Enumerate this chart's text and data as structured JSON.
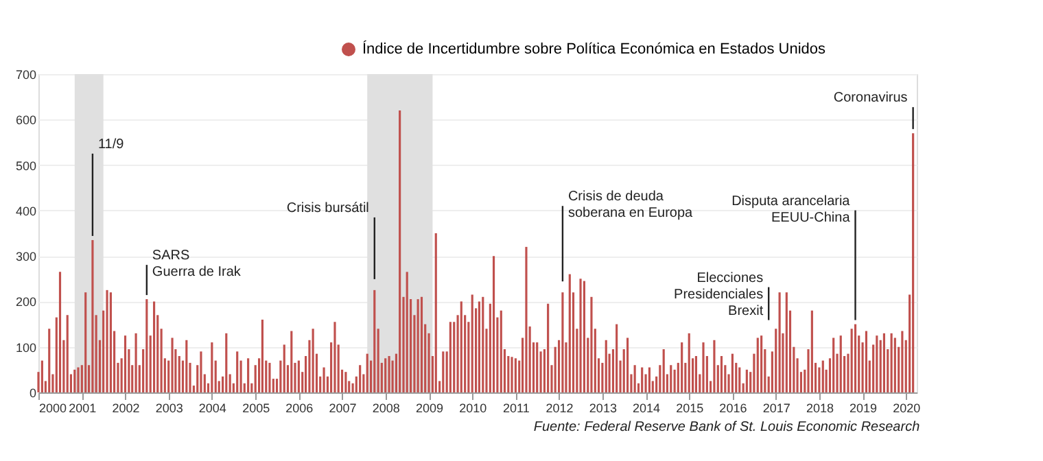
{
  "chart_data": {
    "type": "bar",
    "x": [
      "2000-01",
      "2000-02",
      "2000-03",
      "2000-04",
      "2000-05",
      "2000-06",
      "2000-07",
      "2000-08",
      "2000-09",
      "2000-10",
      "2000-11",
      "2000-12",
      "2001-01",
      "2001-02",
      "2001-03",
      "2001-04",
      "2001-05",
      "2001-06",
      "2001-07",
      "2001-08",
      "2001-09",
      "2001-10",
      "2001-11",
      "2001-12",
      "2002-01",
      "2002-02",
      "2002-03",
      "2002-04",
      "2002-05",
      "2002-06",
      "2002-07",
      "2002-08",
      "2002-09",
      "2002-10",
      "2002-11",
      "2002-12",
      "2003-01",
      "2003-02",
      "2003-03",
      "2003-04",
      "2003-05",
      "2003-06",
      "2003-07",
      "2003-08",
      "2003-09",
      "2003-10",
      "2003-11",
      "2003-12",
      "2004-01",
      "2004-02",
      "2004-03",
      "2004-04",
      "2004-05",
      "2004-06",
      "2004-07",
      "2004-08",
      "2004-09",
      "2004-10",
      "2004-11",
      "2004-12",
      "2005-01",
      "2005-02",
      "2005-03",
      "2005-04",
      "2005-05",
      "2005-06",
      "2005-07",
      "2005-08",
      "2005-09",
      "2005-10",
      "2005-11",
      "2005-12",
      "2006-01",
      "2006-02",
      "2006-03",
      "2006-04",
      "2006-05",
      "2006-06",
      "2006-07",
      "2006-08",
      "2006-09",
      "2006-10",
      "2006-11",
      "2006-12",
      "2007-01",
      "2007-02",
      "2007-03",
      "2007-04",
      "2007-05",
      "2007-06",
      "2007-07",
      "2007-08",
      "2007-09",
      "2007-10",
      "2007-11",
      "2007-12",
      "2008-01",
      "2008-02",
      "2008-03",
      "2008-04",
      "2008-05",
      "2008-06",
      "2008-07",
      "2008-08",
      "2008-09",
      "2008-10",
      "2008-11",
      "2008-12",
      "2009-01",
      "2009-02",
      "2009-03",
      "2009-04",
      "2009-05",
      "2009-06",
      "2009-07",
      "2009-08",
      "2009-09",
      "2009-10",
      "2009-11",
      "2009-12",
      "2010-01",
      "2010-02",
      "2010-03",
      "2010-04",
      "2010-05",
      "2010-06",
      "2010-07",
      "2010-08",
      "2010-09",
      "2010-10",
      "2010-11",
      "2010-12",
      "2011-01",
      "2011-02",
      "2011-03",
      "2011-04",
      "2011-05",
      "2011-06",
      "2011-07",
      "2011-08",
      "2011-09",
      "2011-10",
      "2011-11",
      "2011-12",
      "2012-01",
      "2012-02",
      "2012-03",
      "2012-04",
      "2012-05",
      "2012-06",
      "2012-07",
      "2012-08",
      "2012-09",
      "2012-10",
      "2012-11",
      "2012-12",
      "2013-01",
      "2013-02",
      "2013-03",
      "2013-04",
      "2013-05",
      "2013-06",
      "2013-07",
      "2013-08",
      "2013-09",
      "2013-10",
      "2013-11",
      "2013-12",
      "2014-01",
      "2014-02",
      "2014-03",
      "2014-04",
      "2014-05",
      "2014-06",
      "2014-07",
      "2014-08",
      "2014-09",
      "2014-10",
      "2014-11",
      "2014-12",
      "2015-01",
      "2015-02",
      "2015-03",
      "2015-04",
      "2015-05",
      "2015-06",
      "2015-07",
      "2015-08",
      "2015-09",
      "2015-10",
      "2015-11",
      "2015-12",
      "2016-01",
      "2016-02",
      "2016-03",
      "2016-04",
      "2016-05",
      "2016-06",
      "2016-07",
      "2016-08",
      "2016-09",
      "2016-10",
      "2016-11",
      "2016-12",
      "2017-01",
      "2017-02",
      "2017-03",
      "2017-04",
      "2017-05",
      "2017-06",
      "2017-07",
      "2017-08",
      "2017-09",
      "2017-10",
      "2017-11",
      "2017-12",
      "2018-01",
      "2018-02",
      "2018-03",
      "2018-04",
      "2018-05",
      "2018-06",
      "2018-07",
      "2018-08",
      "2018-09",
      "2018-10",
      "2018-11",
      "2018-12",
      "2019-01",
      "2019-02",
      "2019-03",
      "2019-04",
      "2019-05",
      "2019-06",
      "2019-07",
      "2019-08",
      "2019-09",
      "2019-10",
      "2019-11",
      "2019-12",
      "2020-01",
      "2020-02",
      "2020-03"
    ],
    "series": [
      {
        "name": "Índice de Incertidumbre sobre Política Económica en Estados Unidos",
        "color": "#c0504d",
        "values": [
          45,
          70,
          25,
          140,
          40,
          165,
          265,
          115,
          170,
          40,
          50,
          55,
          60,
          220,
          60,
          335,
          170,
          115,
          180,
          225,
          220,
          135,
          65,
          75,
          125,
          95,
          60,
          130,
          60,
          95,
          205,
          125,
          200,
          170,
          140,
          75,
          70,
          120,
          95,
          80,
          70,
          115,
          65,
          15,
          60,
          90,
          40,
          20,
          110,
          70,
          25,
          35,
          130,
          40,
          20,
          90,
          70,
          20,
          75,
          20,
          60,
          75,
          160,
          70,
          65,
          30,
          30,
          70,
          105,
          60,
          135,
          65,
          70,
          45,
          80,
          115,
          140,
          85,
          35,
          55,
          35,
          110,
          155,
          105,
          50,
          45,
          25,
          20,
          35,
          60,
          40,
          85,
          70,
          225,
          140,
          65,
          75,
          80,
          70,
          85,
          620,
          210,
          265,
          205,
          170,
          205,
          210,
          150,
          130,
          80,
          350,
          25,
          90,
          90,
          155,
          155,
          170,
          200,
          170,
          155,
          215,
          185,
          200,
          210,
          140,
          195,
          300,
          165,
          180,
          95,
          80,
          78,
          75,
          70,
          120,
          320,
          145,
          110,
          110,
          90,
          95,
          195,
          60,
          100,
          115,
          220,
          110,
          260,
          220,
          140,
          250,
          245,
          120,
          210,
          140,
          75,
          65,
          115,
          85,
          95,
          150,
          70,
          95,
          120,
          40,
          60,
          20,
          55,
          40,
          55,
          25,
          35,
          60,
          95,
          40,
          60,
          50,
          65,
          110,
          65,
          130,
          75,
          80,
          40,
          110,
          80,
          25,
          115,
          60,
          80,
          60,
          40,
          85,
          65,
          55,
          20,
          50,
          45,
          85,
          120,
          125,
          95,
          35,
          90,
          140,
          220,
          130,
          220,
          180,
          100,
          75,
          45,
          50,
          95,
          180,
          65,
          55,
          70,
          50,
          75,
          120,
          85,
          125,
          80,
          85,
          140,
          150,
          125,
          110,
          135,
          70,
          105,
          125,
          115,
          130,
          95,
          130,
          120,
          100,
          135,
          115,
          215,
          570
        ]
      }
    ],
    "xlim": [
      "2000-01",
      "2020-04"
    ],
    "xticks": [
      "2000",
      "2001",
      "2002",
      "2003",
      "2004",
      "2005",
      "2006",
      "2007",
      "2008",
      "2009",
      "2010",
      "2011",
      "2012",
      "2013",
      "2014",
      "2015",
      "2016",
      "2017",
      "2018",
      "2019",
      "2020"
    ],
    "ylim": [
      0,
      700
    ],
    "yticks": [
      0,
      100,
      200,
      300,
      400,
      500,
      600,
      700
    ],
    "grid": "y",
    "legend": "top right",
    "bands": [
      {
        "axis": "x",
        "from": "2000-11",
        "to": "2001-07",
        "color": "#e0e0e0"
      },
      {
        "axis": "x",
        "from": "2007-08",
        "to": "2009-02",
        "color": "#e0e0e0"
      }
    ],
    "annotations": [
      {
        "text": "11/9",
        "x": "2001-04",
        "y": 335
      },
      {
        "text": "SARS\nGuerra de Irak",
        "x": "2002-07",
        "y": 205
      },
      {
        "text": "Crisis bursátil",
        "x": "2007-10",
        "y": 240
      },
      {
        "text": "Crisis de deuda\nsoberana en Europa",
        "x": "2012-02",
        "y": 235
      },
      {
        "text": "Elecciones\nPresidenciales\nBrexit",
        "x": "2016-11",
        "y": 150
      },
      {
        "text": "Disputa arancelaria\nEEUU-China",
        "x": "2018-11",
        "y": 150
      },
      {
        "text": "Coronavirus",
        "x": "2020-03",
        "y": 570
      },
      "Fuente: Federal Reserve Bank of St. Louis Economic Research"
    ]
  }
}
